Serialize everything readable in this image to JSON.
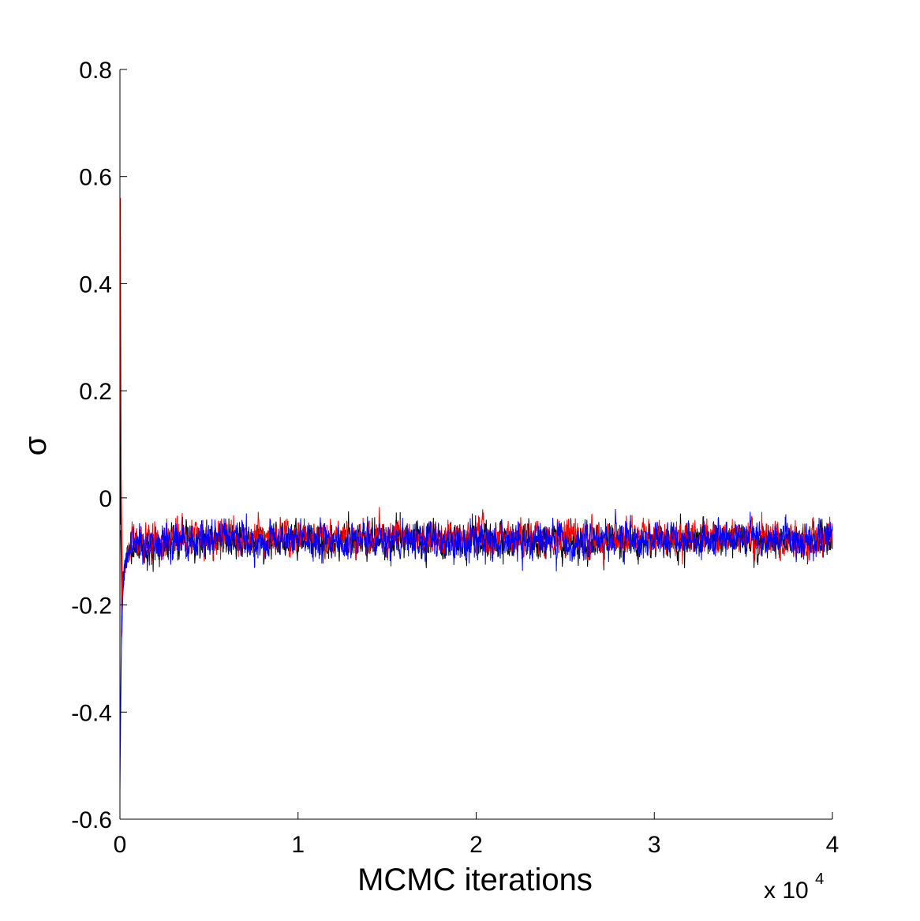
{
  "chart_data": {
    "type": "line",
    "title": "",
    "xlabel": "MCMC iterations",
    "ylabel": "σ",
    "x_multiplier_label": {
      "base": "x 10",
      "exponent": "4"
    },
    "xlim": [
      0,
      4
    ],
    "ylim": [
      -0.6,
      0.8
    ],
    "xticks": [
      0,
      1,
      2,
      3,
      4
    ],
    "xtick_labels": [
      "0",
      "1",
      "2",
      "3",
      "4"
    ],
    "yticks": [
      -0.6,
      -0.4,
      -0.2,
      0,
      0.2,
      0.4,
      0.6,
      0.8
    ],
    "ytick_labels": [
      "-0.6",
      "-0.4",
      "-0.2",
      "0",
      "0.2",
      "0.4",
      "0.6",
      "0.8"
    ],
    "grid": false,
    "legend": "none",
    "series_colors": [
      "#000000",
      "#ff0000",
      "#0000ff"
    ],
    "series": [
      {
        "x": [
          0,
          0.0025,
          0.005,
          0.01,
          0.015,
          0.02,
          0.03,
          0.04,
          0.05,
          0.06,
          0.08,
          0.1,
          0.15,
          0.3,
          0.6,
          1.0,
          1.5,
          2.0,
          2.5,
          3.0,
          3.5,
          4.0
        ],
        "values": [
          -0.12,
          0.2,
          -0.05,
          -0.2,
          -0.16,
          -0.14,
          -0.12,
          -0.11,
          -0.1,
          -0.095,
          -0.09,
          -0.085,
          -0.085,
          -0.08,
          -0.08,
          -0.08,
          -0.08,
          -0.08,
          -0.08,
          -0.08,
          -0.08,
          -0.08
        ],
        "noise_range": [
          -0.14,
          -0.02
        ]
      },
      {
        "x": [
          0,
          0.003,
          0.006,
          0.01,
          0.015,
          0.02,
          0.03,
          0.04,
          0.05,
          0.06,
          0.08,
          0.1,
          0.15,
          0.3,
          0.6,
          1.0,
          1.5,
          2.0,
          2.5,
          3.0,
          3.5,
          4.0
        ],
        "values": [
          0.15,
          0.56,
          0.1,
          -0.26,
          -0.2,
          -0.15,
          -0.13,
          -0.11,
          -0.1,
          -0.09,
          -0.085,
          -0.08,
          -0.08,
          -0.075,
          -0.075,
          -0.075,
          -0.075,
          -0.075,
          -0.075,
          -0.075,
          -0.075,
          -0.075
        ],
        "noise_range": [
          -0.18,
          -0.01
        ]
      },
      {
        "x": [
          0,
          0.002,
          0.005,
          0.01,
          0.015,
          0.02,
          0.03,
          0.04,
          0.05,
          0.06,
          0.08,
          0.1,
          0.15,
          0.3,
          0.6,
          1.0,
          1.5,
          2.0,
          2.5,
          3.0,
          3.5,
          4.0
        ],
        "values": [
          -0.55,
          -0.47,
          -0.35,
          -0.22,
          -0.18,
          -0.15,
          -0.12,
          -0.11,
          -0.1,
          -0.095,
          -0.09,
          -0.085,
          -0.08,
          -0.08,
          -0.08,
          -0.08,
          -0.08,
          -0.08,
          -0.08,
          -0.08,
          -0.08,
          -0.08
        ],
        "noise_range": [
          -0.14,
          -0.005
        ]
      }
    ]
  }
}
